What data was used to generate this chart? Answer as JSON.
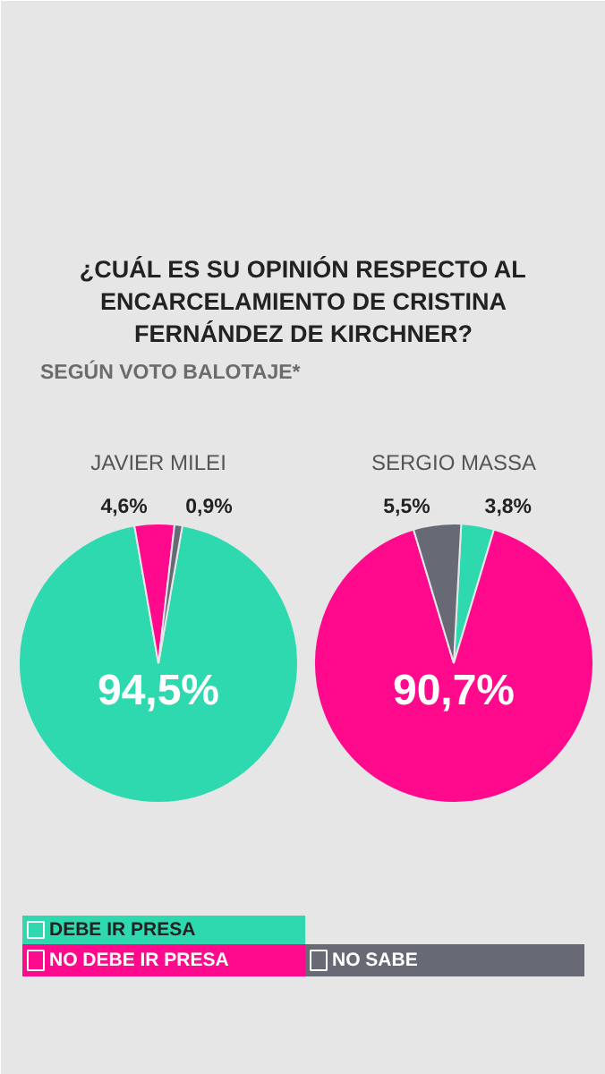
{
  "chart_data": [
    {
      "type": "pie",
      "title": "JAVIER MILEI",
      "annotations": [
        "¿CUÁL ES SU OPINIÓN RESPECTO AL ENCARCELAMIENTO DE CRISTINA FERNÁNDEZ DE KIRCHNER?",
        "SEGÚN VOTO BALOTAJE*"
      ],
      "categories": [
        "DEBE IR PRESA",
        "NO DEBE IR PRESA",
        "NO SABE"
      ],
      "values": [
        94.5,
        4.6,
        0.9
      ],
      "colors": [
        "#2fd9b0",
        "#ff0a8c",
        "#676a74"
      ],
      "value_labels": [
        "94,5%",
        "4,6%",
        "0,9%"
      ],
      "legend": "bottom"
    },
    {
      "type": "pie",
      "title": "SERGIO MASSA",
      "categories": [
        null,
        null,
        null
      ],
      "values": [
        3.8,
        90.7,
        5.5
      ],
      "colors": [
        "#2fd9b0",
        "#ff0a8c",
        "#676a74"
      ],
      "value_labels": [
        "3,8%",
        "90,7%",
        "5,5%"
      ]
    }
  ]
}
